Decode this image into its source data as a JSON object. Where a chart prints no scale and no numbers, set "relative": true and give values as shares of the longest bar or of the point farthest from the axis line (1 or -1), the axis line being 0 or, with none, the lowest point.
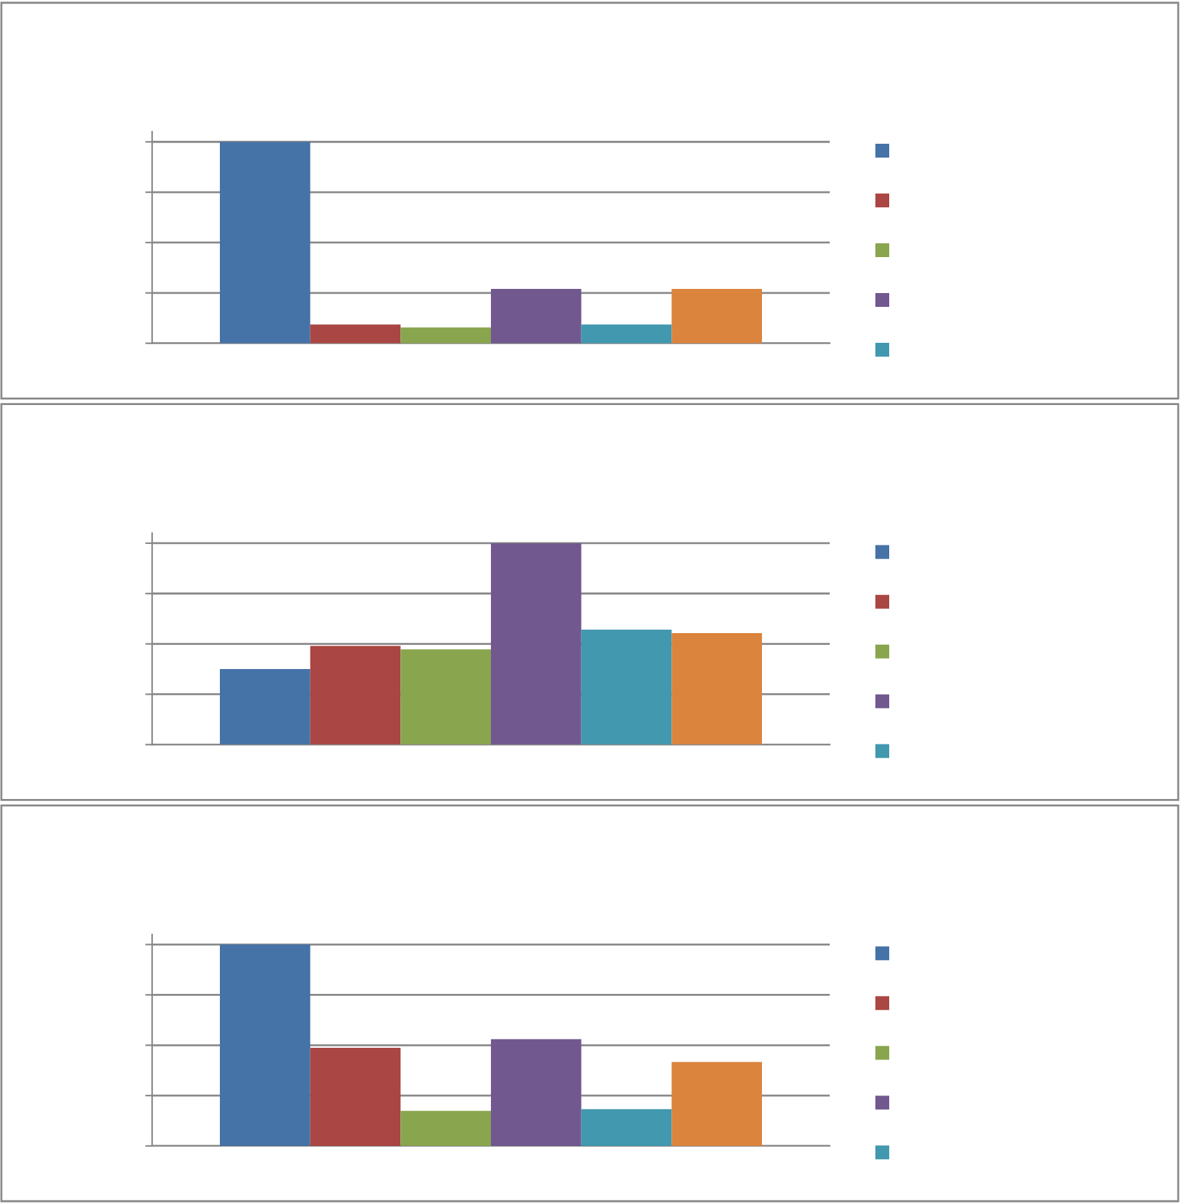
{
  "chart_data": [
    {
      "type": "bar",
      "relative": true,
      "categories": [
        null
      ],
      "grid": "y",
      "tick_labels": false,
      "series": [
        {
          "color": "#4572a7",
          "values": [
            1
          ]
        },
        {
          "color": "#aa4643",
          "values": [
            0.093
          ]
        },
        {
          "color": "#89a54e",
          "values": [
            0.079
          ]
        },
        {
          "color": "#71588f",
          "values": [
            0.27
          ]
        },
        {
          "color": "#4198af",
          "values": [
            0.093
          ]
        },
        {
          "color": "#db843d",
          "values": [
            0.27
          ]
        }
      ]
    },
    {
      "type": "bar",
      "relative": true,
      "categories": [
        null
      ],
      "grid": "y",
      "tick_labels": false,
      "series": [
        {
          "color": "#4572a7",
          "values": [
            0.375
          ]
        },
        {
          "color": "#aa4643",
          "values": [
            0.49
          ]
        },
        {
          "color": "#89a54e",
          "values": [
            0.473
          ]
        },
        {
          "color": "#71588f",
          "values": [
            1
          ]
        },
        {
          "color": "#4198af",
          "values": [
            0.571
          ]
        },
        {
          "color": "#db843d",
          "values": [
            0.554
          ]
        }
      ]
    },
    {
      "type": "bar",
      "relative": true,
      "categories": [
        null
      ],
      "grid": "y",
      "tick_labels": false,
      "series": [
        {
          "color": "#4572a7",
          "values": [
            1
          ]
        },
        {
          "color": "#aa4643",
          "values": [
            0.487
          ]
        },
        {
          "color": "#89a54e",
          "values": [
            0.174
          ]
        },
        {
          "color": "#71588f",
          "values": [
            0.53
          ]
        },
        {
          "color": "#4198af",
          "values": [
            0.183
          ]
        },
        {
          "color": "#db843d",
          "values": [
            0.417
          ]
        }
      ]
    }
  ]
}
